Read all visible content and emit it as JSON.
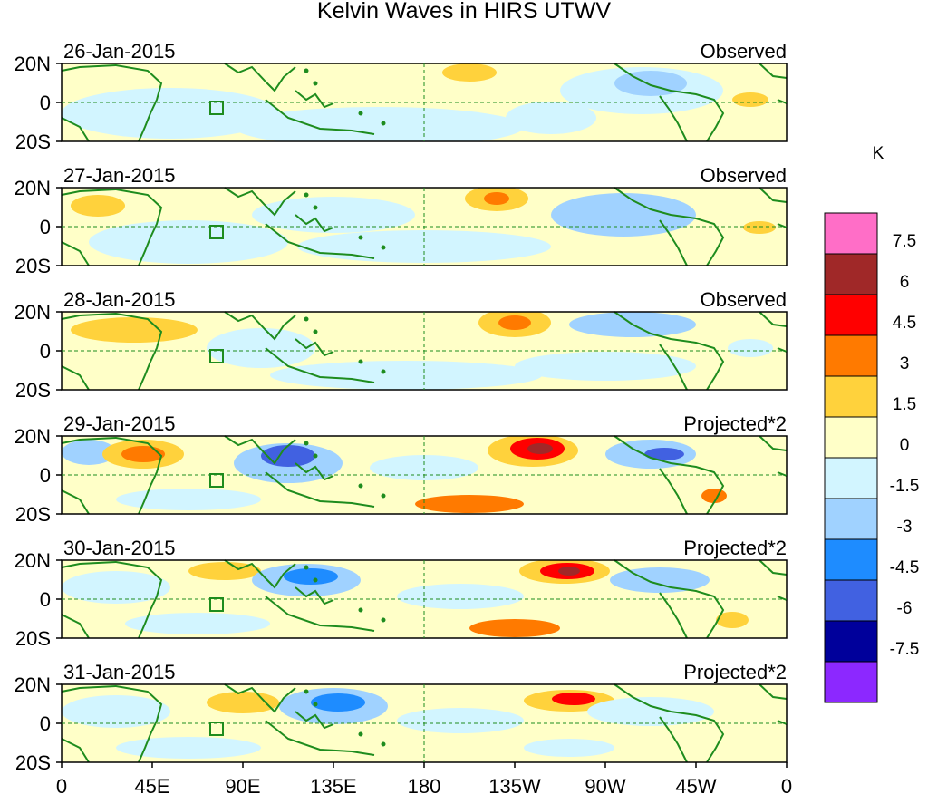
{
  "title": "Kelvin Waves in HIRS UTWV",
  "y_ticks": [
    "20N",
    "0",
    "20S"
  ],
  "x_ticks": [
    "0",
    "45E",
    "90E",
    "135E",
    "180",
    "135W",
    "90W",
    "45W",
    "0"
  ],
  "panels": [
    {
      "date": "26-Jan-2015",
      "type": "Observed"
    },
    {
      "date": "27-Jan-2015",
      "type": "Observed"
    },
    {
      "date": "28-Jan-2015",
      "type": "Observed"
    },
    {
      "date": "29-Jan-2015",
      "type": "Projected*2"
    },
    {
      "date": "30-Jan-2015",
      "type": "Projected*2"
    },
    {
      "date": "31-Jan-2015",
      "type": "Projected*2"
    }
  ],
  "colorbar": {
    "unit": "K",
    "labels": [
      "7.5",
      "6",
      "4.5",
      "3",
      "1.5",
      "0",
      "-1.5",
      "-3",
      "-4.5",
      "-6",
      "-7.5"
    ],
    "colors": [
      "#ff6ec7",
      "#a02828",
      "#ff0000",
      "#ff7a00",
      "#ffd23c",
      "#ffffc8",
      "#d2f5ff",
      "#a0d2ff",
      "#1e8cff",
      "#4161e1",
      "#00009b",
      "#8c28ff"
    ]
  },
  "palette": {
    "background": "#ffffc8",
    "light_blue": "#d2f5ff",
    "blue": "#a0d2ff",
    "coast": "#1e8c1e"
  }
}
